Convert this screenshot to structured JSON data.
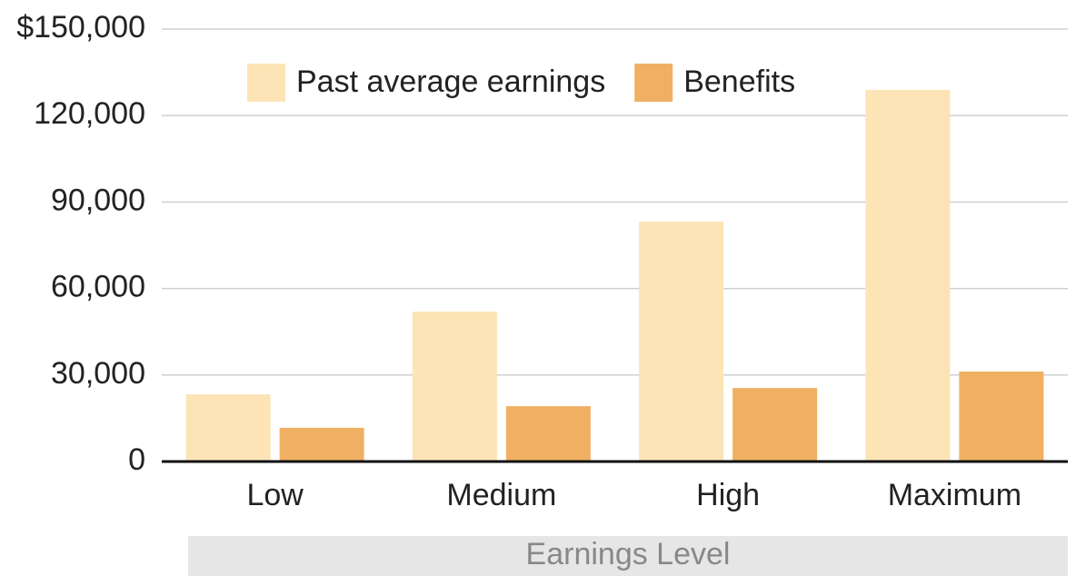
{
  "chart_data": {
    "type": "bar",
    "categories": [
      "Low",
      "Medium",
      "High",
      "Maximum"
    ],
    "series": [
      {
        "name": "Past average earnings",
        "color": "#fde4b6",
        "values": [
          23300,
          52000,
          83200,
          128900
        ]
      },
      {
        "name": "Benefits",
        "color": "#f0b063",
        "values": [
          11700,
          19200,
          25500,
          31200
        ]
      }
    ],
    "xlabel": "Earnings Level",
    "ylim": [
      0,
      150000
    ],
    "yticks": [
      0,
      {
        "value": 30000,
        "label": "30,000"
      },
      {
        "value": 60000,
        "label": "60,000"
      },
      {
        "value": 90000,
        "label": "90,000"
      },
      {
        "value": 120000,
        "label": "120,000"
      },
      {
        "value": 150000,
        "label": "$150,000"
      }
    ],
    "grid": true,
    "legend": "top"
  }
}
